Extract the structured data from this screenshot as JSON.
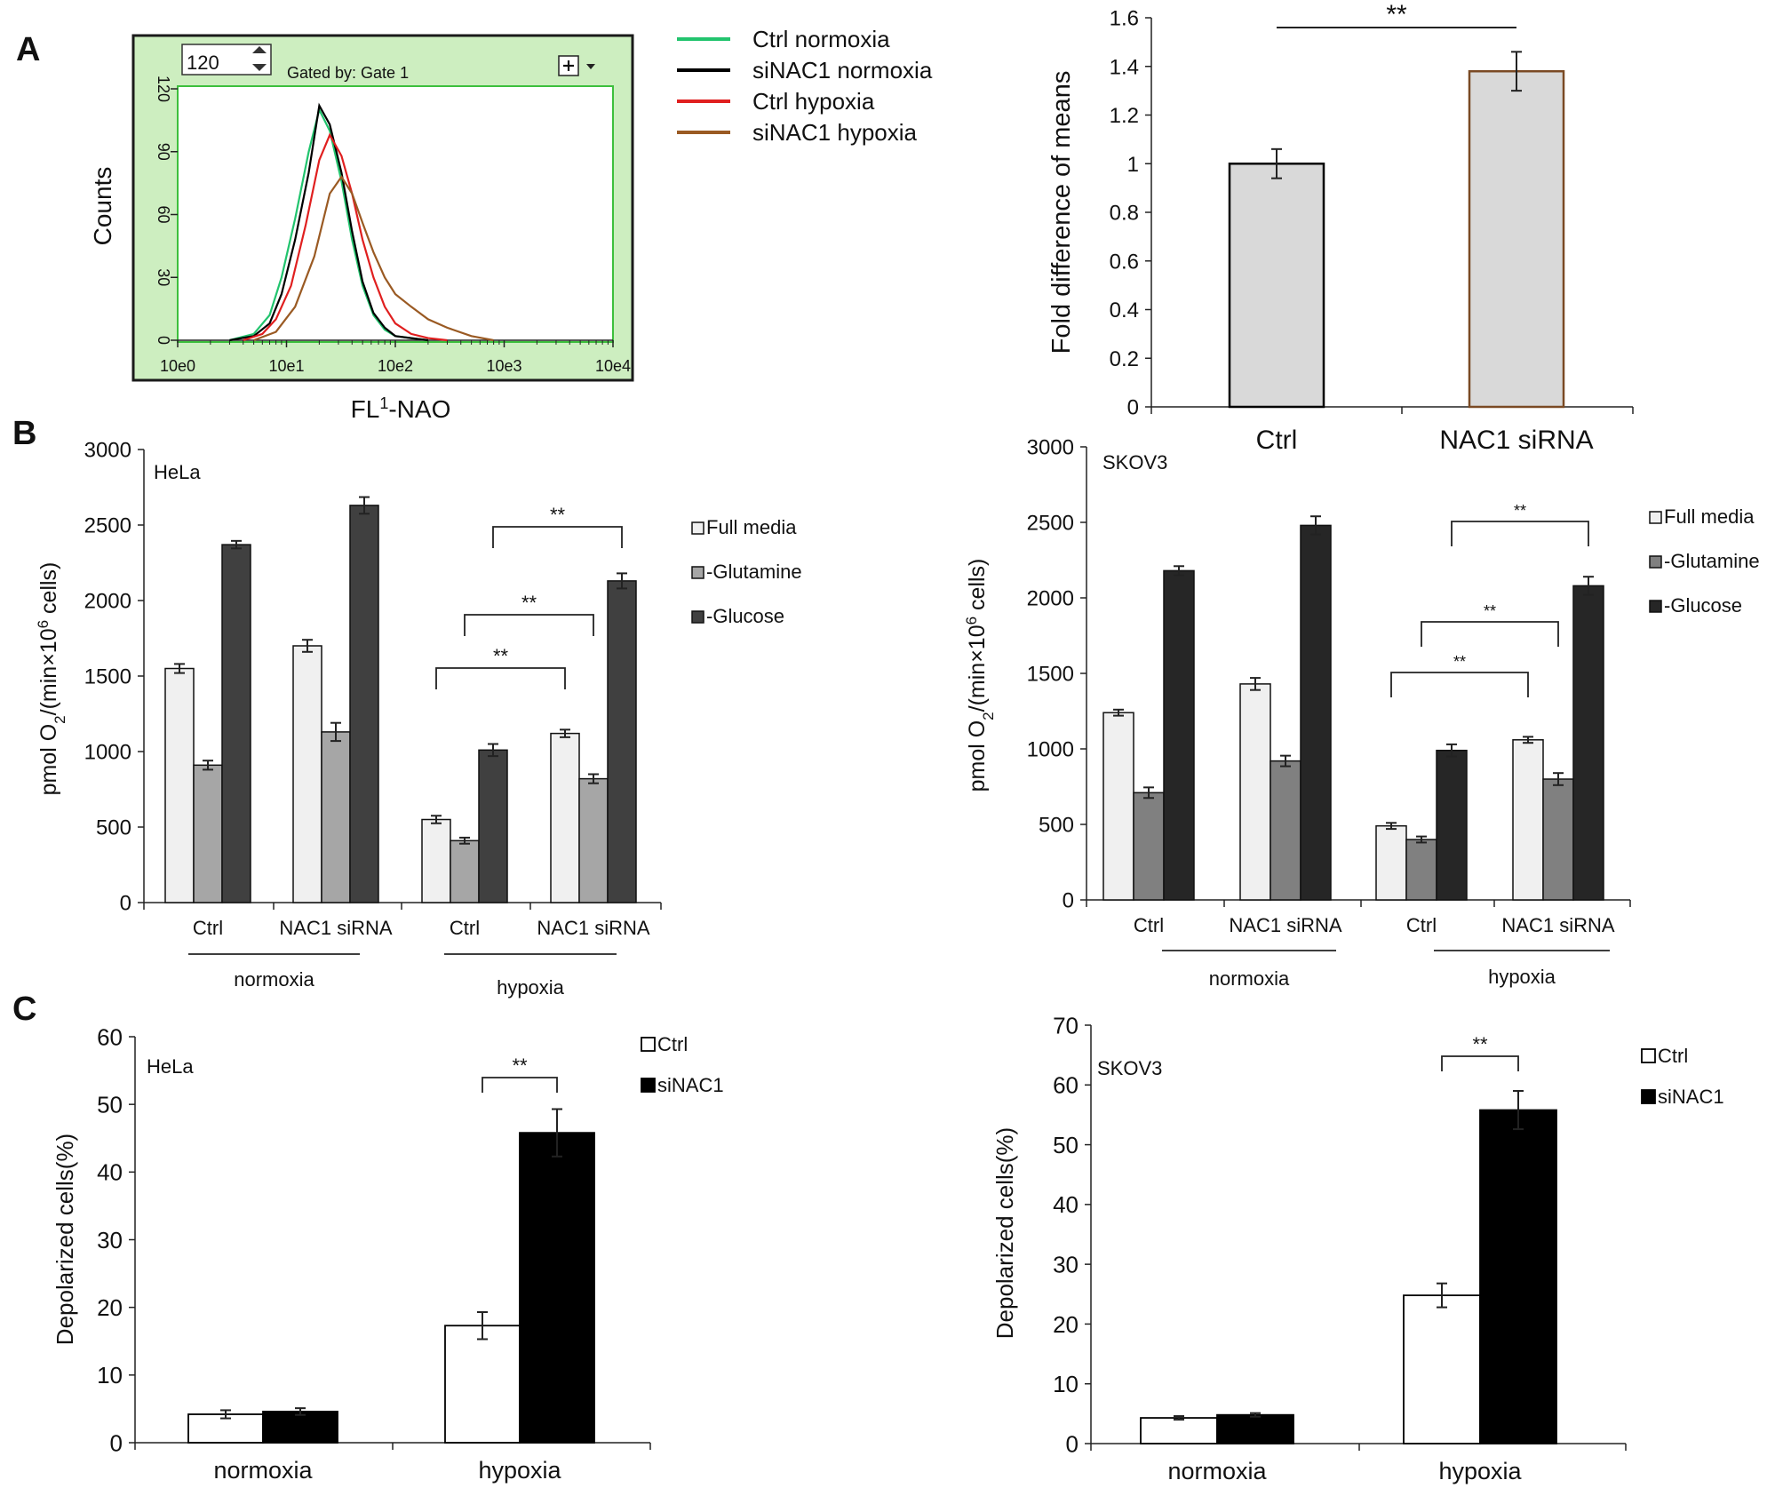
{
  "panel_labels": [
    "A",
    "B",
    "C"
  ],
  "colors": {
    "axis": "#222222",
    "flow_bg": "#cdeec0",
    "flow_border": "#1a1a1a",
    "flow_inner_border": "#3dbf3d",
    "light_bar": "#d9d9d9",
    "full_media": "#f0f0f0",
    "glutamine_hela": "#a6a6a6",
    "glucose_hela": "#404040",
    "glutamine_skov3": "#808080",
    "glucose_skov3": "#262626",
    "ctrl_bar": "#ffffff",
    "sinac1_bar": "#000000",
    "nac1_border": "#7a4a24"
  },
  "chart_data": [
    {
      "id": "A-flow",
      "type": "line",
      "panel": "A",
      "widget": {
        "zoom_value": "120",
        "gate_label": "Gated by: Gate 1",
        "add_icon": "plus-icon",
        "dropdown_icon": "triangle-down-icon"
      },
      "xlabel": "FL1-NAO",
      "xlabel_parts": {
        "base": "FL",
        "sup": "1",
        "rest": "-NAO"
      },
      "ylabel": "Counts",
      "x_scale": "log",
      "xlim": [
        1,
        10000
      ],
      "ylim": [
        0,
        120
      ],
      "x_tick_labels": [
        "10e0",
        "10e1",
        "10e2",
        "10e3",
        "10e4"
      ],
      "y_tick_labels": [
        "0",
        "30",
        "60",
        "90",
        "120"
      ],
      "legend": [
        {
          "label": "Ctrl   normoxia",
          "color": "#22c46e"
        },
        {
          "label": "siNAC1  normoxia",
          "color": "#000000"
        },
        {
          "label": "Ctrl   hypoxia",
          "color": "#e01f1f"
        },
        {
          "label": "siNAC1  hypoxia",
          "color": "#9a5a23"
        }
      ],
      "series": [
        {
          "name": "Ctrl normoxia",
          "color": "#22c46e",
          "x": [
            3,
            5,
            7,
            9,
            12,
            16,
            20,
            25,
            32,
            40,
            50,
            63,
            80,
            100,
            140,
            200
          ],
          "y": [
            0,
            3,
            12,
            30,
            58,
            90,
            110,
            100,
            76,
            48,
            26,
            12,
            5,
            2,
            1,
            0
          ]
        },
        {
          "name": "siNAC1 normoxia",
          "color": "#000000",
          "x": [
            3,
            5,
            7,
            9,
            12,
            16,
            20,
            25,
            32,
            40,
            50,
            63,
            80,
            100,
            140,
            200
          ],
          "y": [
            0,
            2,
            8,
            22,
            48,
            80,
            112,
            103,
            80,
            52,
            28,
            13,
            6,
            2,
            1,
            0
          ]
        },
        {
          "name": "Ctrl hypoxia",
          "color": "#e01f1f",
          "x": [
            4,
            6,
            8,
            11,
            15,
            20,
            25,
            32,
            40,
            50,
            63,
            80,
            100,
            140,
            200,
            300
          ],
          "y": [
            0,
            3,
            10,
            26,
            55,
            86,
            98,
            88,
            70,
            48,
            30,
            16,
            8,
            3,
            1,
            0
          ]
        },
        {
          "name": "siNAC1 hypoxia",
          "color": "#9a5a23",
          "x": [
            5,
            8,
            12,
            18,
            25,
            32,
            40,
            50,
            63,
            80,
            100,
            140,
            200,
            300,
            500,
            800
          ],
          "y": [
            0,
            4,
            16,
            40,
            70,
            78,
            70,
            56,
            42,
            30,
            22,
            16,
            10,
            6,
            2,
            0
          ]
        }
      ]
    },
    {
      "id": "A-bar",
      "type": "bar",
      "panel": "A",
      "categories": [
        "Ctrl",
        "NAC1 siRNA"
      ],
      "values": [
        1.0,
        1.38
      ],
      "errors": [
        0.06,
        0.08
      ],
      "ylabel": "Fold difference of means",
      "ylim": [
        0,
        1.6
      ],
      "y_tick_labels": [
        "0",
        "0.2",
        "0.4",
        "0.6",
        "0.8",
        "1",
        "1.2",
        "1.4",
        "1.6"
      ],
      "significance": {
        "label": "**",
        "from": 0,
        "to": 1
      }
    },
    {
      "id": "B-hela",
      "type": "bar",
      "panel": "B",
      "title": "HeLa",
      "ylabel": "pmol O2/(min×10^6 cells)",
      "ylabel_parts": {
        "a": "pmol O",
        "a_sub": "2",
        "b": "/(min×10",
        "b_sup": "6",
        "c": " cells)"
      },
      "ylim": [
        0,
        3000
      ],
      "y_tick_labels": [
        "0",
        "500",
        "1000",
        "1500",
        "2000",
        "2500",
        "3000"
      ],
      "categories": [
        "Ctrl",
        "NAC1 siRNA",
        "Ctrl",
        "NAC1 siRNA"
      ],
      "groups": [
        {
          "label": "normoxia",
          "from": 0,
          "to": 1
        },
        {
          "label": "hypoxia",
          "from": 2,
          "to": 3
        }
      ],
      "series": [
        {
          "name": "Full media",
          "color": "#f0f0f0",
          "values": [
            1550,
            1700,
            550,
            1120
          ],
          "errors": [
            30,
            40,
            25,
            25
          ]
        },
        {
          "name": "-Glutamine",
          "color": "#a6a6a6",
          "values": [
            910,
            1130,
            410,
            820
          ],
          "errors": [
            30,
            60,
            20,
            30
          ]
        },
        {
          "name": "-Glucose",
          "color": "#404040",
          "values": [
            2370,
            2630,
            1010,
            2130
          ],
          "errors": [
            25,
            55,
            40,
            50
          ]
        }
      ],
      "significance": [
        {
          "label": "**",
          "from_group": 2,
          "from_series": 0,
          "to_group": 3,
          "to_series": 0
        },
        {
          "label": "**",
          "from_group": 2,
          "from_series": 1,
          "to_group": 3,
          "to_series": 1
        },
        {
          "label": "**",
          "from_group": 2,
          "from_series": 2,
          "to_group": 3,
          "to_series": 2
        }
      ]
    },
    {
      "id": "B-skov3",
      "type": "bar",
      "panel": "B",
      "title": "SKOV3",
      "ylabel": "pmol O2/(min×10^6 cells)",
      "ylabel_parts": {
        "a": "pmol O",
        "a_sub": "2",
        "b": "/(min×10",
        "b_sup": "6",
        "c": " cells)"
      },
      "ylim": [
        0,
        3000
      ],
      "y_tick_labels": [
        "0",
        "500",
        "1000",
        "1500",
        "2000",
        "2500",
        "3000"
      ],
      "categories": [
        "Ctrl",
        "NAC1 siRNA",
        "Ctrl",
        "NAC1 siRNA"
      ],
      "groups": [
        {
          "label": "normoxia",
          "from": 0,
          "to": 1
        },
        {
          "label": "hypoxia",
          "from": 2,
          "to": 3
        }
      ],
      "series": [
        {
          "name": "Full media",
          "color": "#f0f0f0",
          "values": [
            1240,
            1430,
            490,
            1060
          ],
          "errors": [
            20,
            40,
            20,
            20
          ]
        },
        {
          "name": "-Glutamine",
          "color": "#808080",
          "values": [
            710,
            920,
            400,
            800
          ],
          "errors": [
            35,
            35,
            20,
            40
          ]
        },
        {
          "name": "-Glucose",
          "color": "#262626",
          "values": [
            2180,
            2480,
            990,
            2080
          ],
          "errors": [
            30,
            60,
            40,
            60
          ]
        }
      ],
      "significance": [
        {
          "label": "**",
          "from_group": 2,
          "from_series": 0,
          "to_group": 3,
          "to_series": 0
        },
        {
          "label": "**",
          "from_group": 2,
          "from_series": 1,
          "to_group": 3,
          "to_series": 1
        },
        {
          "label": "**",
          "from_group": 2,
          "from_series": 2,
          "to_group": 3,
          "to_series": 2
        }
      ]
    },
    {
      "id": "C-hela",
      "type": "bar",
      "panel": "C",
      "title": "HeLa",
      "ylabel": "Depolarized cells(%)",
      "ylim": [
        0,
        60
      ],
      "y_tick_labels": [
        "0",
        "10",
        "20",
        "30",
        "40",
        "50",
        "60"
      ],
      "categories": [
        "normoxia",
        "hypoxia"
      ],
      "series": [
        {
          "name": "Ctrl",
          "color": "#ffffff",
          "values": [
            4.2,
            17.3
          ],
          "errors": [
            0.6,
            2.0
          ]
        },
        {
          "name": "siNAC1",
          "color": "#000000",
          "values": [
            4.6,
            45.8
          ],
          "errors": [
            0.5,
            3.5
          ]
        }
      ],
      "significance": {
        "label": "**",
        "group": 1
      }
    },
    {
      "id": "C-skov3",
      "type": "bar",
      "panel": "C",
      "title": "SKOV3",
      "ylabel": "Depolarized cells(%)",
      "ylim": [
        0,
        70
      ],
      "y_tick_labels": [
        "0",
        "10",
        "20",
        "30",
        "40",
        "50",
        "60",
        "70"
      ],
      "categories": [
        "normoxia",
        "hypoxia"
      ],
      "series": [
        {
          "name": "Ctrl",
          "color": "#ffffff",
          "values": [
            4.3,
            24.8
          ],
          "errors": [
            0.3,
            2.0
          ]
        },
        {
          "name": "siNAC1",
          "color": "#000000",
          "values": [
            4.8,
            55.8
          ],
          "errors": [
            0.3,
            3.2
          ]
        }
      ],
      "significance": {
        "label": "**",
        "group": 1
      }
    }
  ]
}
